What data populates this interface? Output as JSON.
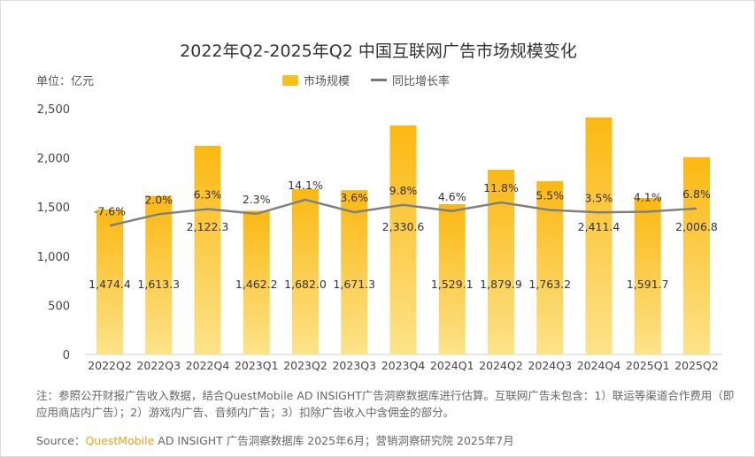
{
  "chart_data": {
    "type": "bar+line",
    "title": "2022年Q2-2025年Q2 中国互联网广告市场规模变化",
    "unit": "单位：亿元",
    "categories": [
      "2022Q2",
      "2022Q3",
      "2022Q4",
      "2023Q1",
      "2023Q2",
      "2023Q3",
      "2023Q4",
      "2024Q1",
      "2024Q2",
      "2024Q3",
      "2024Q4",
      "2025Q1",
      "2025Q2"
    ],
    "series": [
      {
        "name": "市场规模",
        "type": "bar",
        "color": "#fbbf1c",
        "values": [
          1474.4,
          1613.3,
          2122.3,
          1462.2,
          1682.0,
          1671.3,
          2330.6,
          1529.1,
          1879.9,
          1763.2,
          2411.4,
          1591.7,
          2006.8
        ],
        "labels": [
          "1,474.4",
          "1,613.3",
          "2,122.3",
          "1,462.2",
          "1,682.0",
          "1,671.3",
          "2,330.6",
          "1,529.1",
          "1,879.9",
          "1,763.2",
          "2,411.4",
          "1,591.7",
          "2,006.8"
        ]
      },
      {
        "name": "同比增长率",
        "type": "line",
        "color": "#808080",
        "values": [
          -7.6,
          2.0,
          6.3,
          2.3,
          14.1,
          3.6,
          9.8,
          4.6,
          11.8,
          5.5,
          3.5,
          4.1,
          6.8
        ],
        "labels": [
          "-7.6%",
          "2.0%",
          "6.3%",
          "2.3%",
          "14.1%",
          "3.6%",
          "9.8%",
          "4.6%",
          "11.8%",
          "5.5%",
          "3.5%",
          "4.1%",
          "6.8%"
        ]
      }
    ],
    "yticks": [
      "0",
      "500",
      "1,000",
      "1,500",
      "2,000",
      "2,500"
    ],
    "ylim": [
      0,
      2500
    ],
    "legend": "top-center"
  },
  "note": "注：参照公开财报广告收入数据，结合QuestMobile AD INSIGHT广告洞察数据库进行估算。互联网广告未包含：1）联运等渠道合作费用（即应用商店内广告）；2）游戏内广告、音频内广告；3）扣除广告收入中含佣金的部分。",
  "source": {
    "label": "Source：",
    "brand": "QuestMobile",
    "text": " AD INSIGHT 广告洞察数据库 2025年6月；营销洞察研究院 2025年7月"
  }
}
